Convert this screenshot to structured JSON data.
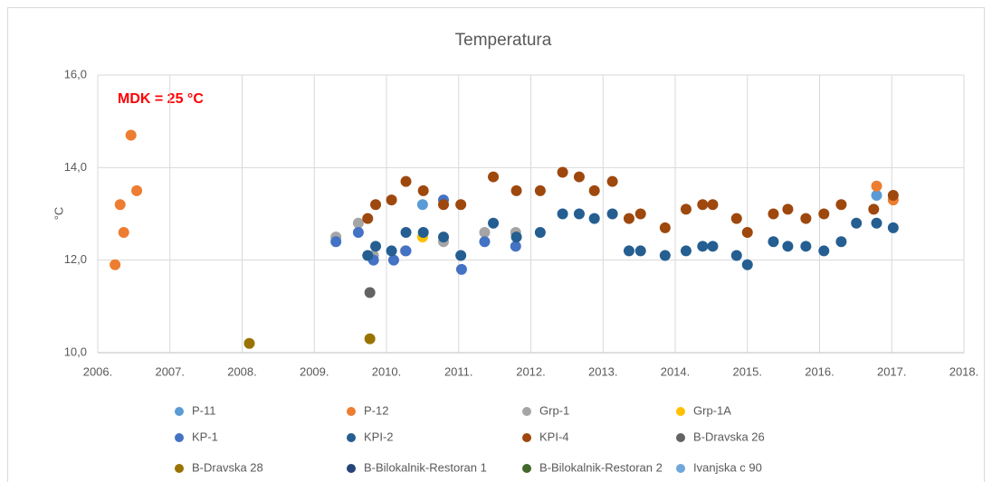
{
  "chart_data": {
    "type": "scatter",
    "title": "Temperatura",
    "annotation": "MDK = 25 °C",
    "ylabel": "°C",
    "xlim": [
      2006,
      2018
    ],
    "ylim": [
      10,
      16
    ],
    "xticks": [
      {
        "value": 2006,
        "label": "2006."
      },
      {
        "value": 2007,
        "label": "2007."
      },
      {
        "value": 2008,
        "label": "2008."
      },
      {
        "value": 2009,
        "label": "2009."
      },
      {
        "value": 2010,
        "label": "2010."
      },
      {
        "value": 2011,
        "label": "2011."
      },
      {
        "value": 2012,
        "label": "2012."
      },
      {
        "value": 2013,
        "label": "2013."
      },
      {
        "value": 2014,
        "label": "2014."
      },
      {
        "value": 2015,
        "label": "2015."
      },
      {
        "value": 2016,
        "label": "2016."
      },
      {
        "value": 2017,
        "label": "2017."
      },
      {
        "value": 2018,
        "label": "2018."
      }
    ],
    "yticks": [
      {
        "value": 10,
        "label": "10,0"
      },
      {
        "value": 12,
        "label": "12,0"
      },
      {
        "value": 14,
        "label": "14,0"
      },
      {
        "value": 16,
        "label": "16,0"
      }
    ],
    "grid": true,
    "series": [
      {
        "name": "P-11",
        "color": "#5b9bd5",
        "x": [
          2010.5,
          2016.79
        ],
        "y": [
          13.2,
          13.4
        ]
      },
      {
        "name": "P-12",
        "color": "#ed7d31",
        "x": [
          2006.24,
          2006.31,
          2006.36,
          2006.46,
          2006.54,
          2016.79,
          2017.02
        ],
        "y": [
          11.9,
          13.2,
          12.6,
          14.7,
          13.5,
          13.6,
          13.3
        ]
      },
      {
        "name": "Grp-1",
        "color": "#a5a5a5",
        "x": [
          2009.3,
          2009.61,
          2009.82,
          2010.26,
          2010.79,
          2011.36,
          2011.79
        ],
        "y": [
          12.5,
          12.8,
          12.1,
          12.2,
          12.4,
          12.6,
          12.6
        ]
      },
      {
        "name": "Grp-1A",
        "color": "#ffc000",
        "x": [
          2010.5
        ],
        "y": [
          12.5
        ]
      },
      {
        "name": "KP-1",
        "color": "#4472c4",
        "x": [
          2009.3,
          2009.61,
          2009.82,
          2010.1,
          2010.27,
          2010.79,
          2011.04,
          2011.36,
          2011.79
        ],
        "y": [
          12.4,
          12.6,
          12.0,
          12.0,
          12.2,
          13.3,
          11.8,
          12.4,
          12.3
        ]
      },
      {
        "name": "KPI-2",
        "color": "#255e91",
        "x": [
          2009.74,
          2009.85,
          2010.07,
          2010.27,
          2010.51,
          2010.79,
          2011.03,
          2011.48,
          2011.8,
          2012.13,
          2012.44,
          2012.67,
          2012.88,
          2013.13,
          2013.36,
          2013.52,
          2013.86,
          2014.15,
          2014.38,
          2014.52,
          2014.85,
          2015.0,
          2015.36,
          2015.56,
          2015.81,
          2016.06,
          2016.3,
          2016.51,
          2016.79,
          2017.02
        ],
        "y": [
          12.1,
          12.3,
          12.2,
          12.6,
          12.6,
          12.5,
          12.1,
          12.8,
          12.5,
          12.6,
          13.0,
          13.0,
          12.9,
          13.0,
          12.2,
          12.2,
          12.1,
          12.2,
          12.3,
          12.3,
          12.1,
          11.9,
          12.4,
          12.3,
          12.3,
          12.2,
          12.4,
          12.8,
          12.8,
          12.7
        ]
      },
      {
        "name": "KPI-4",
        "color": "#9e480e",
        "x": [
          2009.74,
          2009.85,
          2010.07,
          2010.27,
          2010.51,
          2010.79,
          2011.03,
          2011.48,
          2011.8,
          2012.13,
          2012.44,
          2012.67,
          2012.88,
          2013.13,
          2013.36,
          2013.52,
          2013.86,
          2014.15,
          2014.38,
          2014.52,
          2014.85,
          2015.0,
          2015.36,
          2015.56,
          2015.81,
          2016.06,
          2016.3,
          2016.75,
          2017.02
        ],
        "y": [
          12.9,
          13.2,
          13.3,
          13.7,
          13.5,
          13.2,
          13.2,
          13.8,
          13.5,
          13.5,
          13.9,
          13.8,
          13.5,
          13.7,
          12.9,
          13.0,
          12.7,
          13.1,
          13.2,
          13.2,
          12.9,
          12.6,
          13.0,
          13.1,
          12.9,
          13.0,
          13.2,
          13.1,
          13.4
        ]
      },
      {
        "name": "B-Dravska 26",
        "color": "#636363",
        "x": [
          2009.77
        ],
        "y": [
          11.3
        ]
      },
      {
        "name": "B-Dravska 28",
        "color": "#997300",
        "x": [
          2008.1,
          2009.77
        ],
        "y": [
          10.2,
          10.3
        ]
      },
      {
        "name": "B-Bilokalnik-Restoran 1",
        "color": "#264478",
        "x": [],
        "y": []
      },
      {
        "name": "B-Bilokalnik-Restoran 2",
        "color": "#43682b",
        "x": [],
        "y": []
      },
      {
        "name": "Ivanjska c 90",
        "color": "#6fa8dc",
        "x": [],
        "y": []
      }
    ]
  }
}
